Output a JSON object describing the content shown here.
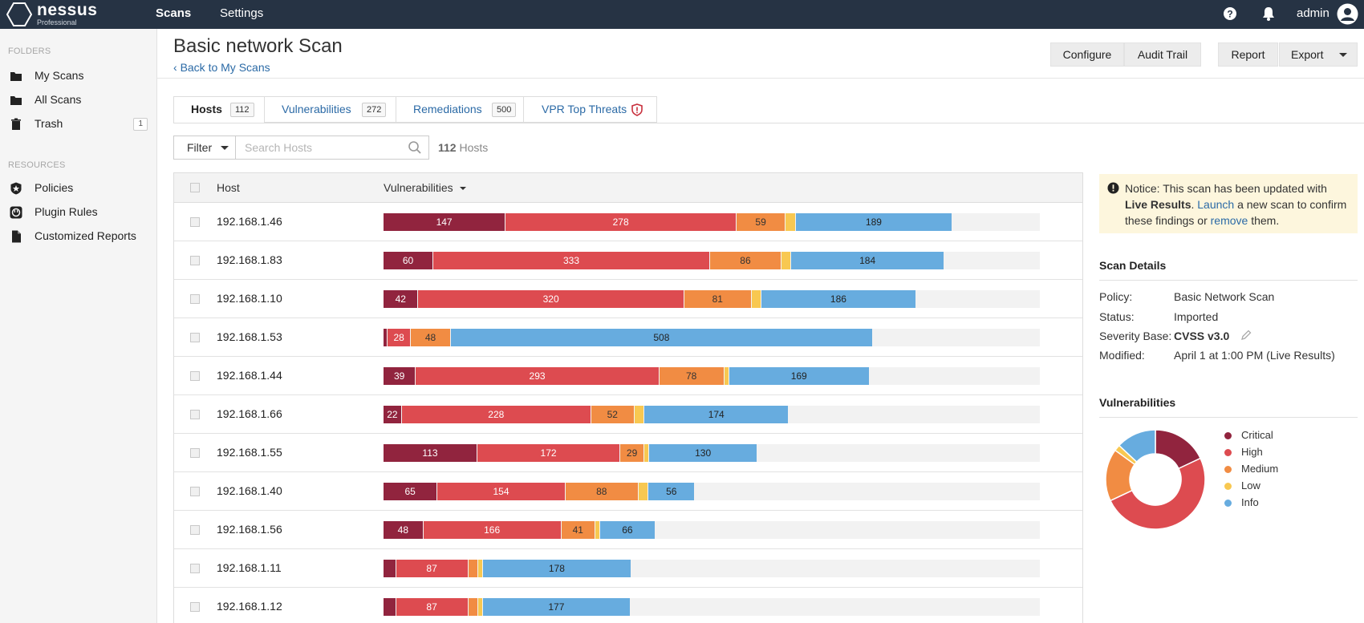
{
  "app": {
    "name": "nessus",
    "edition": "Professional"
  },
  "topnav": {
    "scans": "Scans",
    "settings": "Settings",
    "user": "admin"
  },
  "icons": {
    "logo": "hexagon-logo-icon",
    "help": "help-icon",
    "notifications": "bell-icon",
    "user": "user-avatar-icon",
    "folder": "folder-icon",
    "trash": "trash-icon",
    "policies": "policy-badge-icon",
    "plugin_rules": "plugin-rules-icon",
    "reports": "document-icon",
    "search": "search-icon",
    "vpr": "shield-alert-icon",
    "notice": "exclamation-circle-icon",
    "edit": "pencil-icon"
  },
  "sidebar": {
    "folders_heading": "FOLDERS",
    "folders": [
      {
        "label": "My Scans"
      },
      {
        "label": "All Scans"
      },
      {
        "label": "Trash",
        "count": "1"
      }
    ],
    "resources_heading": "RESOURCES",
    "resources": [
      {
        "label": "Policies"
      },
      {
        "label": "Plugin Rules"
      },
      {
        "label": "Customized Reports"
      }
    ]
  },
  "header": {
    "title": "Basic network Scan",
    "back": "Back to My Scans",
    "buttons": {
      "configure": "Configure",
      "audit_trail": "Audit Trail",
      "report": "Report",
      "export": "Export"
    }
  },
  "tabs": [
    {
      "label": "Hosts",
      "count": "112"
    },
    {
      "label": "Vulnerabilities",
      "count": "272"
    },
    {
      "label": "Remediations",
      "count": "500"
    },
    {
      "label": "VPR Top Threats"
    }
  ],
  "filter": {
    "label": "Filter",
    "placeholder": "Search Hosts",
    "count": "112",
    "count_suffix": "Hosts"
  },
  "table": {
    "col_host": "Host",
    "col_vulns": "Vulnerabilities",
    "scale_max": 790,
    "rows": [
      {
        "ip": "192.168.1.46",
        "critical": 147,
        "high": 278,
        "medium": 59,
        "low": 12,
        "info": 189
      },
      {
        "ip": "192.168.1.83",
        "critical": 60,
        "high": 333,
        "medium": 86,
        "low": 12,
        "info": 184
      },
      {
        "ip": "192.168.1.10",
        "critical": 42,
        "high": 320,
        "medium": 81,
        "low": 12,
        "info": 186
      },
      {
        "ip": "192.168.1.53",
        "critical": 5,
        "high": 28,
        "medium": 48,
        "low": 0,
        "info": 508
      },
      {
        "ip": "192.168.1.44",
        "critical": 39,
        "high": 293,
        "medium": 78,
        "low": 6,
        "info": 169
      },
      {
        "ip": "192.168.1.66",
        "critical": 22,
        "high": 228,
        "medium": 52,
        "low": 12,
        "info": 174
      },
      {
        "ip": "192.168.1.55",
        "critical": 113,
        "high": 172,
        "medium": 29,
        "low": 6,
        "info": 130
      },
      {
        "ip": "192.168.1.40",
        "critical": 65,
        "high": 154,
        "medium": 88,
        "low": 12,
        "info": 56
      },
      {
        "ip": "192.168.1.56",
        "critical": 48,
        "high": 166,
        "medium": 41,
        "low": 6,
        "info": 66
      },
      {
        "ip": "192.168.1.11",
        "critical": 15,
        "high": 87,
        "medium": 12,
        "low": 6,
        "info": 178
      },
      {
        "ip": "192.168.1.12",
        "critical": 15,
        "high": 87,
        "medium": 12,
        "low": 6,
        "info": 177
      }
    ]
  },
  "notice": {
    "prefix": "Notice: This scan has been updated with ",
    "bold": "Live Results",
    "mid": ". ",
    "link1": "Launch",
    "mid2": " a new scan to confirm these findings or ",
    "link2": "remove",
    "suffix": " them."
  },
  "scan_details": {
    "title": "Scan Details",
    "items": [
      {
        "key": "Policy:",
        "value": "Basic Network Scan"
      },
      {
        "key": "Status:",
        "value": "Imported"
      },
      {
        "key": "Severity Base:",
        "value": "CVSS v3.0"
      },
      {
        "key": "Modified:",
        "value": "April 1 at 1:00 PM (Live Results)"
      }
    ]
  },
  "vuln_chart": {
    "title": "Vulnerabilities",
    "chart_data": {
      "type": "pie",
      "categories": [
        "Critical",
        "High",
        "Medium",
        "Low",
        "Info"
      ],
      "values": [
        18,
        50,
        17,
        2,
        13
      ],
      "colors": [
        "#91243e",
        "#dd4b50",
        "#f18c43",
        "#f8c851",
        "#67acdf"
      ],
      "legend": "right"
    }
  },
  "colors": {
    "critical": "#91243e",
    "high": "#dd4b50",
    "medium": "#f18c43",
    "low": "#f8c851",
    "info": "#67acdf"
  }
}
